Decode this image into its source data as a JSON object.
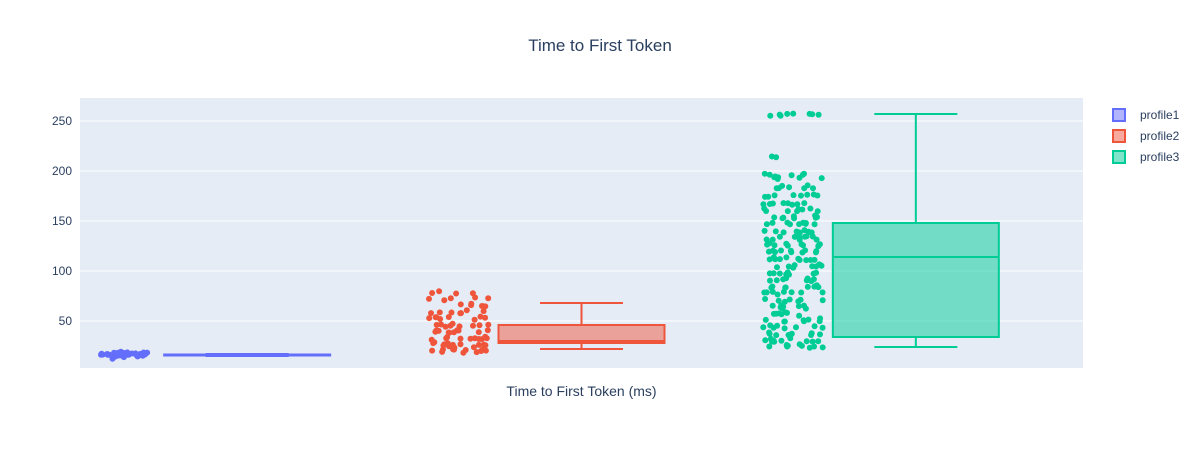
{
  "title": "Time to First Token",
  "colors": {
    "paper_bg": "#ffffff",
    "plot_bg": "#e5ecf6",
    "grid": "#ffffff",
    "font": "#2a3f5f"
  },
  "chart_data": {
    "type": "box",
    "title": "Time to First Token",
    "xlabel": "Time to First Token (ms)",
    "ylabel": "",
    "y_range": [
      3,
      273
    ],
    "y_ticks": [
      50,
      100,
      150,
      200,
      250
    ],
    "grid": true,
    "legend_position": "right",
    "orientation": "vertical",
    "points_shown": "all",
    "series": [
      {
        "name": "profile1",
        "color": "#636EFA",
        "box": {
          "min": 15,
          "q1": 15.5,
          "median": 16,
          "q3": 16.5,
          "max": 17
        },
        "point_bands": [
          [
            14,
            2
          ],
          [
            15,
            6
          ],
          [
            16,
            12
          ],
          [
            17,
            11
          ],
          [
            18,
            7
          ],
          [
            19,
            2
          ]
        ]
      },
      {
        "name": "profile2",
        "color": "#EF553B",
        "box": {
          "min": 22,
          "q1": 28,
          "median": 30,
          "q3": 46,
          "max": 68
        },
        "point_bands": [
          [
            20,
            8
          ],
          [
            23,
            6
          ],
          [
            27,
            10
          ],
          [
            33,
            10
          ],
          [
            40,
            10
          ],
          [
            46,
            9
          ],
          [
            53,
            8
          ],
          [
            59,
            7
          ],
          [
            66,
            6
          ],
          [
            72,
            5
          ],
          [
            79,
            4
          ]
        ]
      },
      {
        "name": "profile3",
        "color": "#00CC96",
        "box": {
          "min": 24,
          "q1": 34,
          "median": 114,
          "q3": 148,
          "max": 257
        },
        "point_bands": [
          [
            25,
            9
          ],
          [
            31,
            10
          ],
          [
            37,
            9
          ],
          [
            44,
            8
          ],
          [
            51,
            8
          ],
          [
            57,
            7
          ],
          [
            64,
            8
          ],
          [
            71,
            7
          ],
          [
            78,
            8
          ],
          [
            85,
            8
          ],
          [
            91,
            8
          ],
          [
            98,
            8
          ],
          [
            105,
            9
          ],
          [
            112,
            10
          ],
          [
            119,
            10
          ],
          [
            126,
            10
          ],
          [
            133,
            10
          ],
          [
            140,
            10
          ],
          [
            147,
            9
          ],
          [
            154,
            8
          ],
          [
            161,
            8
          ],
          [
            168,
            8
          ],
          [
            175,
            8
          ],
          [
            184,
            7
          ],
          [
            193,
            6
          ],
          [
            197,
            5
          ],
          [
            213,
            2
          ],
          [
            256,
            8
          ]
        ]
      }
    ]
  }
}
